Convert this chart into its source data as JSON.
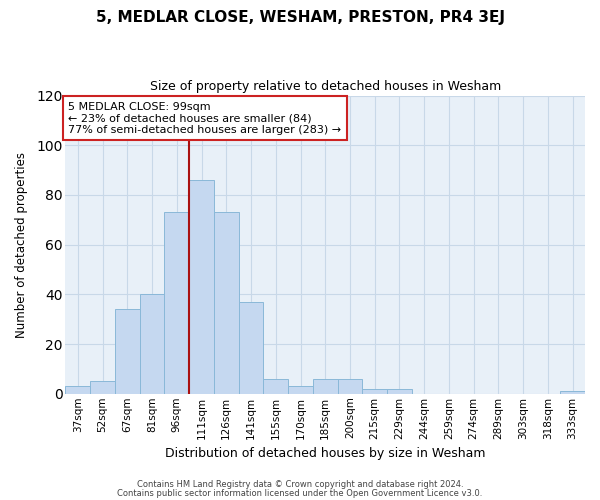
{
  "title": "5, MEDLAR CLOSE, WESHAM, PRESTON, PR4 3EJ",
  "subtitle": "Size of property relative to detached houses in Wesham",
  "xlabel": "Distribution of detached houses by size in Wesham",
  "ylabel": "Number of detached properties",
  "bar_color": "#c5d8f0",
  "bar_edge_color": "#8ab8d8",
  "background_color": "#ffffff",
  "plot_bg_color": "#e8f0f8",
  "grid_color": "#c8d8e8",
  "annotation_box_color": "#cc2222",
  "vline_color": "#aa1111",
  "annotation_text_line1": "5 MEDLAR CLOSE: 99sqm",
  "annotation_text_line2": "← 23% of detached houses are smaller (84)",
  "annotation_text_line3": "77% of semi-detached houses are larger (283) →",
  "categories": [
    "37sqm",
    "52sqm",
    "67sqm",
    "81sqm",
    "96sqm",
    "111sqm",
    "126sqm",
    "141sqm",
    "155sqm",
    "170sqm",
    "185sqm",
    "200sqm",
    "215sqm",
    "229sqm",
    "244sqm",
    "259sqm",
    "274sqm",
    "289sqm",
    "303sqm",
    "318sqm",
    "333sqm"
  ],
  "values": [
    3,
    5,
    34,
    40,
    73,
    86,
    73,
    37,
    6,
    3,
    6,
    6,
    2,
    2,
    0,
    0,
    0,
    0,
    0,
    0,
    1
  ],
  "ylim": [
    0,
    120
  ],
  "yticks": [
    0,
    20,
    40,
    60,
    80,
    100,
    120
  ],
  "footer_line1": "Contains HM Land Registry data © Crown copyright and database right 2024.",
  "footer_line2": "Contains public sector information licensed under the Open Government Licence v3.0."
}
